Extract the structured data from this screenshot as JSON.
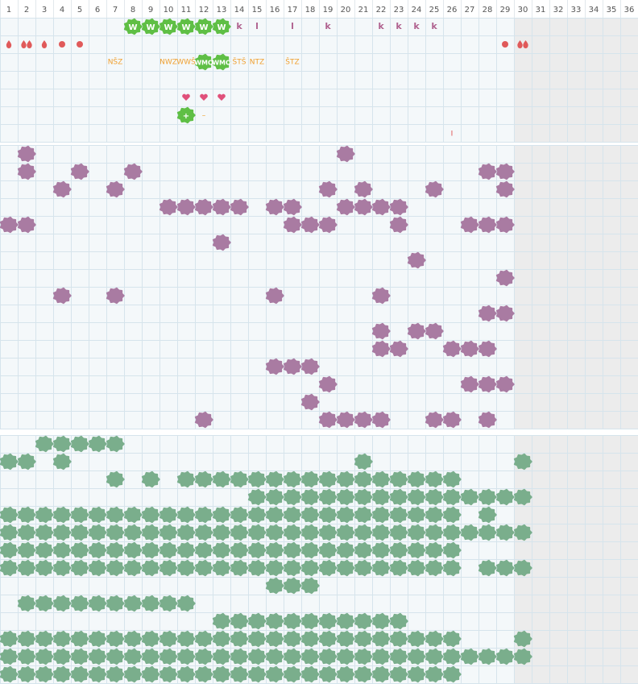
{
  "days": [
    1,
    2,
    3,
    4,
    5,
    6,
    7,
    8,
    9,
    10,
    11,
    12,
    13,
    14,
    15,
    16,
    17,
    18,
    19,
    20,
    21,
    22,
    23,
    24,
    25,
    26,
    27,
    28,
    29,
    30,
    31,
    32,
    33,
    34,
    35,
    36
  ],
  "top": {
    "rows": [
      [
        {
          "col": 8,
          "text": "W",
          "kind": "badge"
        },
        {
          "col": 9,
          "text": "W",
          "kind": "badge"
        },
        {
          "col": 10,
          "text": "W",
          "kind": "badge"
        },
        {
          "col": 11,
          "text": "W",
          "kind": "badge"
        },
        {
          "col": 12,
          "text": "W",
          "kind": "badge"
        },
        {
          "col": 13,
          "text": "W",
          "kind": "badge"
        },
        {
          "col": 14,
          "text": "k",
          "kind": "letter"
        },
        {
          "col": 15,
          "text": "l",
          "kind": "letter"
        },
        {
          "col": 17,
          "text": "l",
          "kind": "letter"
        },
        {
          "col": 19,
          "text": "k",
          "kind": "letter"
        },
        {
          "col": 22,
          "text": "k",
          "kind": "letter"
        },
        {
          "col": 23,
          "text": "k",
          "kind": "letter"
        },
        {
          "col": 24,
          "text": "k",
          "kind": "letter"
        },
        {
          "col": 25,
          "text": "k",
          "kind": "letter"
        }
      ],
      [
        {
          "col": 1,
          "kind": "drop"
        },
        {
          "col": 2,
          "kind": "drop2"
        },
        {
          "col": 3,
          "kind": "drop"
        },
        {
          "col": 4,
          "kind": "dot"
        },
        {
          "col": 5,
          "kind": "dot"
        },
        {
          "col": 29,
          "kind": "dot"
        },
        {
          "col": 30,
          "kind": "drop2"
        }
      ],
      [
        {
          "col": 7,
          "text": "NŠZ",
          "kind": "label"
        },
        {
          "col": 10,
          "text": "NWZ",
          "kind": "label"
        },
        {
          "col": 11,
          "text": "WWŠ",
          "kind": "label"
        },
        {
          "col": 12,
          "text": "WMO",
          "kind": "badge-label"
        },
        {
          "col": 13,
          "text": "WMO",
          "kind": "badge-label"
        },
        {
          "col": 14,
          "text": "ŠTŠ",
          "kind": "label"
        },
        {
          "col": 15,
          "text": "NTZ",
          "kind": "label"
        },
        {
          "col": 17,
          "text": "ŠTZ",
          "kind": "label"
        }
      ],
      [],
      [
        {
          "col": 11,
          "kind": "heart"
        },
        {
          "col": 12,
          "kind": "heart"
        },
        {
          "col": 13,
          "kind": "heart"
        }
      ],
      [
        {
          "col": 11,
          "text": "+",
          "kind": "badge"
        },
        {
          "col": 12,
          "text": "–",
          "kind": "label"
        }
      ],
      [
        {
          "col": 26,
          "text": "I",
          "kind": "mark"
        }
      ]
    ]
  },
  "middle": {
    "color": "#a97ba2",
    "rows": [
      [
        2,
        20
      ],
      [
        2,
        5,
        8,
        28,
        29
      ],
      [
        4,
        7,
        19,
        21,
        25,
        29
      ],
      [
        10,
        11,
        12,
        13,
        14,
        16,
        17,
        20,
        21,
        22,
        23
      ],
      [
        1,
        2,
        17,
        18,
        19,
        23,
        27,
        28,
        29
      ],
      [
        13
      ],
      [
        24
      ],
      [
        29
      ],
      [
        4,
        7,
        16,
        22
      ],
      [
        28,
        29
      ],
      [
        22,
        24,
        25
      ],
      [
        22,
        23,
        26,
        27,
        28
      ],
      [
        16,
        17,
        18
      ],
      [
        19,
        27,
        28,
        29
      ],
      [
        18
      ],
      [
        12,
        19,
        20,
        21,
        22,
        25,
        26,
        28
      ]
    ]
  },
  "bottom": {
    "color": "#7aae8c",
    "rows": [
      [
        3,
        4,
        5,
        6,
        7
      ],
      [
        1,
        2,
        4,
        21,
        30
      ],
      [
        7,
        9,
        11,
        12,
        13,
        14,
        15,
        16,
        17,
        18,
        19,
        20,
        21,
        22,
        23,
        24,
        25,
        26
      ],
      [
        15,
        16,
        17,
        18,
        19,
        20,
        21,
        22,
        23,
        24,
        25,
        26,
        27,
        28,
        29,
        30
      ],
      [
        1,
        2,
        3,
        4,
        5,
        6,
        7,
        8,
        9,
        10,
        11,
        12,
        13,
        14,
        15,
        16,
        17,
        18,
        19,
        20,
        21,
        22,
        23,
        24,
        25,
        26,
        28
      ],
      [
        1,
        2,
        3,
        4,
        5,
        6,
        7,
        8,
        9,
        10,
        11,
        12,
        13,
        14,
        15,
        16,
        17,
        18,
        19,
        20,
        21,
        22,
        23,
        24,
        25,
        26,
        27,
        28,
        29,
        30
      ],
      [
        1,
        2,
        3,
        4,
        5,
        6,
        7,
        8,
        9,
        10,
        11,
        12,
        13,
        14,
        15,
        16,
        17,
        18,
        19,
        20,
        21,
        22,
        23,
        24,
        25,
        26
      ],
      [
        1,
        2,
        3,
        4,
        5,
        6,
        7,
        8,
        9,
        10,
        11,
        12,
        13,
        14,
        15,
        16,
        17,
        18,
        19,
        20,
        21,
        22,
        23,
        24,
        25,
        26,
        28,
        29,
        30
      ],
      [
        16,
        17,
        18
      ],
      [
        2,
        3,
        4,
        5,
        6,
        7,
        8,
        9,
        10,
        11
      ],
      [
        13,
        14,
        15,
        16,
        17,
        18,
        19,
        20,
        21,
        22,
        23
      ],
      [
        1,
        2,
        3,
        4,
        5,
        6,
        7,
        8,
        9,
        10,
        11,
        12,
        13,
        14,
        15,
        16,
        17,
        18,
        19,
        20,
        21,
        22,
        23,
        24,
        25,
        26,
        30
      ],
      [
        1,
        2,
        3,
        4,
        5,
        6,
        7,
        8,
        9,
        10,
        11,
        12,
        13,
        14,
        15,
        16,
        17,
        18,
        19,
        20,
        21,
        22,
        23,
        24,
        25,
        26,
        27,
        28,
        29,
        30
      ],
      [
        1,
        2,
        3,
        4,
        5,
        6,
        7,
        8,
        9,
        10,
        11,
        12,
        13,
        14,
        15,
        16,
        17,
        18,
        19,
        20,
        21,
        22,
        23,
        24,
        25,
        26
      ]
    ]
  }
}
